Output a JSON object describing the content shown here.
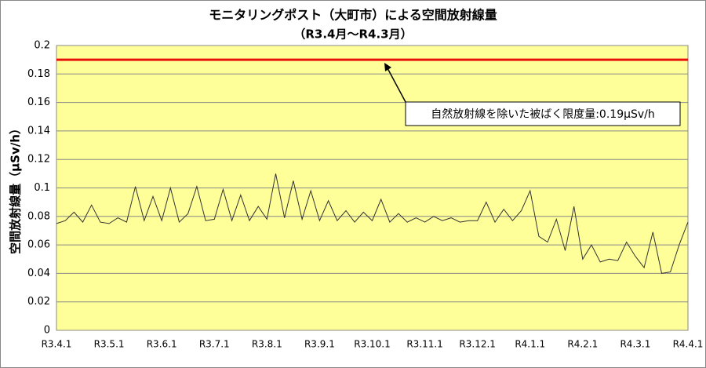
{
  "chart_data": {
    "type": "line",
    "title": "モニタリングポスト（大町市）による空間放射線量",
    "subtitle": "（R3.4月～R4.3月）",
    "y_label": "空間放射線量（μSv/h）",
    "categories": [
      "R3.4.1",
      null,
      null,
      null,
      null,
      null,
      "R3.5.1",
      null,
      null,
      null,
      null,
      null,
      "R3.6.1",
      null,
      null,
      null,
      null,
      null,
      "R3.7.1",
      null,
      null,
      null,
      null,
      null,
      "R3.8.1",
      null,
      null,
      null,
      null,
      null,
      "R3.9.1",
      null,
      null,
      null,
      null,
      null,
      "R3.10.1",
      null,
      null,
      null,
      null,
      null,
      "R3.11.1",
      null,
      null,
      null,
      null,
      null,
      "R3.12.1",
      null,
      null,
      null,
      null,
      null,
      "R4.1.1",
      null,
      null,
      null,
      null,
      null,
      "R4.2.1",
      null,
      null,
      null,
      null,
      null,
      "R4.3.1",
      null,
      null,
      null,
      null,
      null,
      "R4.4.1"
    ],
    "series": [
      {
        "name": "空間放射線量",
        "color": "#333333",
        "values": [
          0.075,
          0.077,
          0.083,
          0.076,
          0.088,
          0.076,
          0.075,
          0.079,
          0.076,
          0.101,
          0.077,
          0.094,
          0.077,
          0.1,
          0.076,
          0.082,
          0.101,
          0.077,
          0.078,
          0.099,
          0.077,
          0.095,
          0.077,
          0.087,
          0.078,
          0.11,
          0.079,
          0.105,
          0.078,
          0.098,
          0.077,
          0.091,
          0.077,
          0.084,
          0.076,
          0.083,
          0.077,
          0.092,
          0.076,
          0.082,
          0.076,
          0.079,
          0.076,
          0.08,
          0.077,
          0.079,
          0.076,
          0.077,
          0.077,
          0.09,
          0.076,
          0.085,
          0.077,
          0.084,
          0.098,
          0.066,
          0.062,
          0.078,
          0.056,
          0.087,
          0.05,
          0.06,
          0.048,
          0.05,
          0.049,
          0.062,
          0.052,
          0.044,
          0.069,
          0.04,
          0.041,
          0.06,
          0.076
        ]
      }
    ],
    "reference_line": {
      "value": 0.19,
      "color": "#e8120c"
    },
    "annotation": "自然放射線を除いた被ばく限度量:0.19μSv/h",
    "ylim": [
      0,
      0.2
    ],
    "yticks": [
      0,
      0.02,
      0.04,
      0.06,
      0.08,
      0.1,
      0.12,
      0.14,
      0.16,
      0.18,
      0.2
    ],
    "grid": true,
    "plot_background": "#ffff99"
  }
}
